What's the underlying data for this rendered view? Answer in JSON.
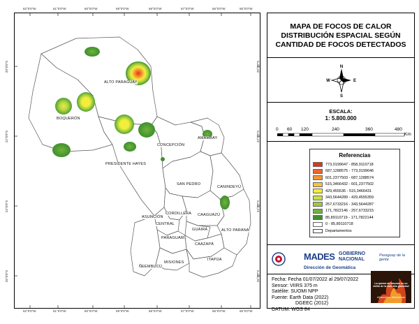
{
  "title": {
    "line1": "MAPA DE FOCOS DE CALOR",
    "line2": "DISTRIBUCIÓN ESPACIAL SEGÚN",
    "line3": "CANTIDAD DE FOCOS DETECTADOS"
  },
  "north": {
    "n": "N",
    "s": "S",
    "e": "E",
    "w": "W"
  },
  "scale": {
    "label": "ESCALA:",
    "value": "1: 5.800.000",
    "ticks": [
      "0",
      "60",
      "120",
      "240",
      "360",
      "480"
    ],
    "unit": "Km"
  },
  "legend": {
    "title": "Referencias",
    "items": [
      {
        "label": "773,0199647 - 858,9110718",
        "color": "#e8311a"
      },
      {
        "label": "687,1288575 - 773,0199646",
        "color": "#f0642a"
      },
      {
        "label": "601,2377503 - 687,1288574",
        "color": "#f5952e"
      },
      {
        "label": "515,3466432 - 601,2377502",
        "color": "#f8c438"
      },
      {
        "label": "429,455536 - 515,3466431",
        "color": "#f2ee3c"
      },
      {
        "label": "343,5644289 - 429,4555359",
        "color": "#c7e03e"
      },
      {
        "label": "257,6733216 - 343,5644287",
        "color": "#9dcb3c"
      },
      {
        "label": "171,7822146 - 257,6733215",
        "color": "#6fb33a"
      },
      {
        "label": "85,89110719 - 171,7822144",
        "color": "#3f8f2e"
      },
      {
        "label": "0 - 85,89110718",
        "color": "#ffffff"
      },
      {
        "label": "Departamentos",
        "color": "#ffffff"
      }
    ]
  },
  "logos": {
    "mades": "MADES",
    "gobierno_line1": "GOBIERNO",
    "gobierno_line2": "NACIONAL",
    "direccion": "Dirección de Geomática",
    "slogan": "Paraguay de la gente"
  },
  "info": {
    "fecha": "Fecha: Fecha 01/07/2022 al 29/07/2022",
    "sensor": "Sensor: VIIRS 375 m",
    "satelite": "Satélite: SUOMI NPP",
    "fuente": "Fuente: Earth Data (2022)",
    "dgeec": "DGEEC     (2012)",
    "datum": "DATUM: WGS 84"
  },
  "promo": {
    "text": "La quema de basuras es un delito de la mas alta gravedad",
    "tag": "#QuemaCero #NoQuemes"
  },
  "map": {
    "lon_ticks": [
      "62°0'0\"W",
      "61°0'0\"W",
      "60°0'0\"W",
      "59°0'0\"W",
      "58°0'0\"W",
      "57°0'0\"W",
      "56°0'0\"W",
      "55°0'0\"W"
    ],
    "lat_ticks": [
      "20°0'0\"S",
      "22°0'0\"S",
      "24°0'0\"S",
      "26°0'0\"S"
    ],
    "departments": [
      "ALTO PARAGUAY",
      "BOQUERÓN",
      "PRESIDENTE HAYES",
      "CONCEPCIÓN",
      "AMAMBAY",
      "SAN PEDRO",
      "CANINDEYÚ",
      "CORDILLERA",
      "CAAGUAZÚ",
      "ASUNCIÓN",
      "CENTRAL",
      "ALTO PARANÁ",
      "GUAIRÁ",
      "PARAGUARÍ",
      "CAAZAPÁ",
      "MISIONES",
      "ÑEEMBUCÚ",
      "ITAPÚA"
    ]
  }
}
